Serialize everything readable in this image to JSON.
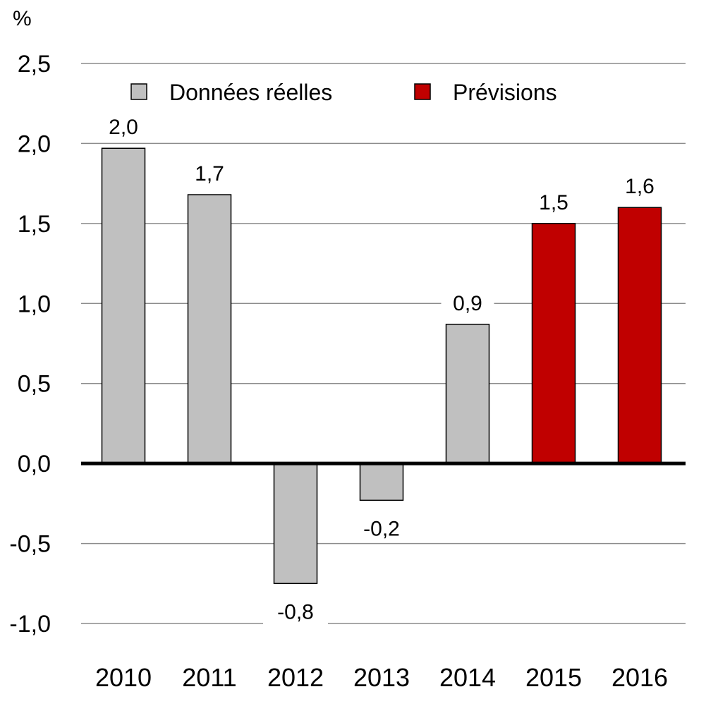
{
  "chart_data": {
    "type": "bar",
    "unit": "%",
    "categories": [
      "2010",
      "2011",
      "2012",
      "2013",
      "2014",
      "2015",
      "2016"
    ],
    "values": [
      1.97,
      1.68,
      -0.75,
      -0.23,
      0.87,
      1.5,
      1.6
    ],
    "data_labels": [
      "2,0",
      "1,7",
      "-0,8",
      "-0,2",
      "0,9",
      "1,5",
      "1,6"
    ],
    "series_index": [
      0,
      0,
      0,
      0,
      0,
      1,
      1
    ],
    "series": [
      {
        "name": "Données réelles",
        "color": "#c0c0c0"
      },
      {
        "name": "Prévisions",
        "color": "#c00000"
      }
    ],
    "ylim": [
      -1.0,
      2.5
    ],
    "yticks": [
      2.5,
      2.0,
      1.5,
      1.0,
      0.5,
      0.0,
      -0.5,
      -1.0
    ],
    "ytick_labels": [
      "2,5",
      "2,0",
      "1,5",
      "1,0",
      "0,5",
      "0,0",
      "-0,5",
      "-1,0"
    ],
    "grid": true,
    "legend_position": "top"
  }
}
